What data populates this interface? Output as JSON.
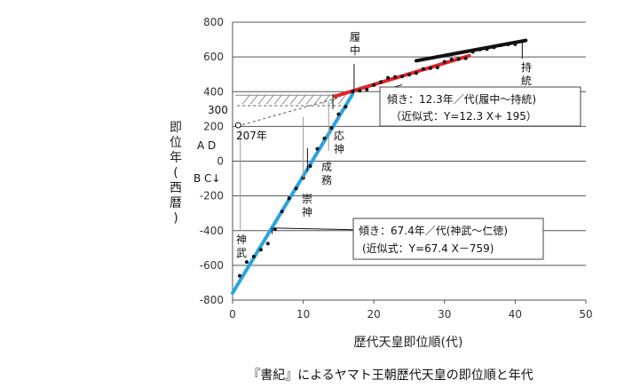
{
  "chart_data": {
    "type": "scatter",
    "xlabel": "歴代天皇即位順(代)",
    "ylabel": "即位年(西暦)",
    "caption": "『書紀』によるヤマト王朝歴代天皇の即位順と年代",
    "xlim": [
      0,
      50
    ],
    "ylim": [
      -800,
      800
    ],
    "x_ticks": [
      0,
      10,
      20,
      30,
      40,
      50
    ],
    "y_ticks": [
      -800,
      -600,
      -400,
      -200,
      0,
      200,
      400,
      600,
      800
    ],
    "grid": "horizontal",
    "series": [
      {
        "points": [
          [
            1,
            -660
          ],
          [
            2,
            -581
          ],
          [
            3,
            -549
          ],
          [
            4,
            -510
          ],
          [
            5,
            -475
          ],
          [
            6,
            -392
          ],
          [
            7,
            -290
          ],
          [
            8,
            -214
          ],
          [
            9,
            -157
          ],
          [
            10,
            -97
          ],
          [
            11,
            -29
          ],
          [
            12,
            71
          ],
          [
            13,
            131
          ],
          [
            14,
            192
          ],
          [
            15,
            270
          ],
          [
            16,
            313
          ],
          [
            17,
            400
          ],
          [
            18,
            406
          ],
          [
            19,
            412
          ],
          [
            20,
            438
          ],
          [
            21,
            456
          ],
          [
            22,
            480
          ],
          [
            23,
            485
          ],
          [
            24,
            488
          ],
          [
            25,
            498
          ],
          [
            26,
            507
          ],
          [
            27,
            531
          ],
          [
            28,
            535
          ],
          [
            29,
            539
          ],
          [
            30,
            572
          ],
          [
            31,
            585
          ],
          [
            32,
            587
          ],
          [
            33,
            592
          ],
          [
            34,
            629
          ],
          [
            35,
            642
          ],
          [
            36,
            645
          ],
          [
            37,
            655
          ],
          [
            38,
            668
          ],
          [
            39,
            672
          ],
          [
            40,
            673
          ],
          [
            41,
            690
          ]
        ]
      }
    ],
    "fit_lines": [
      {
        "slope": 67.4,
        "intercept": -759,
        "x_range": [
          0,
          17
        ],
        "color": "#29a3e0"
      },
      {
        "slope": 12.3,
        "intercept": 195,
        "x_range": [
          14.5,
          33.5
        ],
        "color": "#e0242a"
      },
      {
        "x_range": [
          26,
          41.5
        ],
        "y_range": [
          578,
          695
        ],
        "color": "#111111"
      }
    ],
    "annotations": {
      "label_207": "207年",
      "label_300": "300",
      "label_ad": "A D",
      "label_bc": "B C↓",
      "emperor_richu": "履中",
      "emperor_jito": "持統",
      "emperor_ojin": "応神",
      "emperor_seimu": "成務",
      "emperor_sujin": "崇神",
      "emperor_jimmu": "神武",
      "box1_line1": "傾き：12.3年／代(履中～持統)",
      "box1_line2": "（近似式：Y=12.3 X+ 195）",
      "box2_line1": "傾き：67.4年／代(神武～仁徳)",
      "box2_line2": "(近似式：Y=67.4 X－759)"
    }
  }
}
